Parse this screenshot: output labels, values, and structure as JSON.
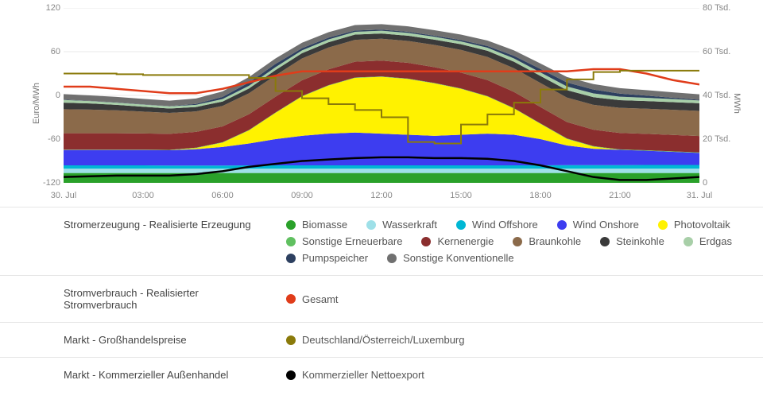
{
  "chart": {
    "type": "area-stacked-with-lines",
    "background_color": "#ffffff",
    "grid_color": "#e8e8e8",
    "axis_text_color": "#888888",
    "x": {
      "ticks": [
        "30. Jul",
        "03:00",
        "06:00",
        "09:00",
        "12:00",
        "15:00",
        "18:00",
        "21:00",
        "31. Jul"
      ],
      "positions": [
        0,
        0.125,
        0.25,
        0.375,
        0.5,
        0.625,
        0.75,
        0.875,
        1.0
      ]
    },
    "y_left": {
      "label": "Euro/MWh",
      "min": -120,
      "max": 120,
      "tick_step": 60,
      "ticks": [
        -120,
        -60,
        0,
        60,
        120
      ]
    },
    "y_right": {
      "label": "MWh",
      "min": 0,
      "max": 80000,
      "tick_step": 20000,
      "ticks_labels": [
        "0",
        "20 Tsd.",
        "40 Tsd.",
        "60 Tsd.",
        "80 Tsd."
      ]
    },
    "stacked_series": [
      {
        "name": "Biomasse",
        "color": "#2aa12a",
        "values": [
          4.5,
          4.5,
          4.5,
          4.5,
          4.5,
          4.5,
          4.5,
          4.5,
          4.5,
          4.5,
          4.5,
          4.5,
          4.5,
          4.5,
          4.5,
          4.5,
          4.5,
          4.5,
          4.5,
          4.5,
          4.5,
          4.5,
          4.5,
          4.5,
          4.5
        ]
      },
      {
        "name": "Wasserkraft",
        "color": "#9ee0e8",
        "values": [
          2.0,
          2.0,
          2.0,
          2.0,
          2.0,
          2.0,
          2.0,
          2.0,
          2.0,
          2.0,
          2.0,
          2.0,
          2.0,
          2.0,
          2.0,
          2.0,
          2.0,
          2.0,
          2.0,
          2.0,
          2.0,
          2.0,
          2.0,
          2.0,
          2.0
        ]
      },
      {
        "name": "Wind Offshore",
        "color": "#00b7d4",
        "values": [
          1.5,
          1.5,
          1.5,
          1.5,
          1.4,
          1.4,
          1.4,
          1.5,
          1.5,
          1.5,
          1.5,
          1.5,
          1.5,
          1.5,
          1.5,
          1.5,
          1.5,
          1.5,
          1.5,
          1.6,
          1.6,
          1.6,
          1.7,
          1.7,
          1.7
        ]
      },
      {
        "name": "Wind Onshore",
        "color": "#3d3df0",
        "values": [
          7.0,
          7.0,
          7.0,
          7.0,
          7.0,
          7.5,
          8.5,
          10.0,
          12.0,
          13.5,
          14.5,
          15.0,
          14.5,
          14.0,
          13.5,
          14.0,
          14.5,
          14.0,
          12.0,
          9.0,
          7.5,
          7.0,
          6.5,
          6.0,
          5.5
        ]
      },
      {
        "name": "Photovoltaik",
        "color": "#fff200",
        "values": [
          0,
          0,
          0,
          0,
          0,
          0.5,
          2.0,
          6.0,
          12.0,
          18.0,
          22.0,
          25.0,
          26.0,
          25.5,
          24.0,
          21.0,
          17.0,
          12.0,
          7.0,
          3.0,
          1.0,
          0,
          0,
          0,
          0
        ]
      },
      {
        "name": "Sonstige Erneuerbare",
        "color": "#60c060",
        "values": [
          0.2,
          0.2,
          0.2,
          0.2,
          0.2,
          0.2,
          0.2,
          0.2,
          0.2,
          0.2,
          0.2,
          0.2,
          0.2,
          0.2,
          0.2,
          0.2,
          0.2,
          0.2,
          0.2,
          0.2,
          0.2,
          0.2,
          0.2,
          0.2,
          0.2
        ]
      },
      {
        "name": "Kernenergie",
        "color": "#8b2e2e",
        "values": [
          7.5,
          7.5,
          7.5,
          7.4,
          7.3,
          7.2,
          7.2,
          7.2,
          7.2,
          7.2,
          7.2,
          7.2,
          7.2,
          7.2,
          7.2,
          7.2,
          7.3,
          7.4,
          7.5,
          7.5,
          7.5,
          7.5,
          7.5,
          7.5,
          7.5
        ]
      },
      {
        "name": "Braunkohle",
        "color": "#8b6a4a",
        "values": [
          11.0,
          10.8,
          10.5,
          10.0,
          9.6,
          9.4,
          9.4,
          9.6,
          9.8,
          10.0,
          10.0,
          10.0,
          10.0,
          10.0,
          10.2,
          10.4,
          10.6,
          10.8,
          11.0,
          11.2,
          11.4,
          11.5,
          11.5,
          11.5,
          11.5
        ]
      },
      {
        "name": "Steinkohle",
        "color": "#3a3a3a",
        "values": [
          3.0,
          2.8,
          2.5,
          2.2,
          2.0,
          2.0,
          2.0,
          2.2,
          2.4,
          2.4,
          2.4,
          2.4,
          2.4,
          2.4,
          2.4,
          2.6,
          2.8,
          3.0,
          3.2,
          3.4,
          3.5,
          3.5,
          3.5,
          3.5,
          3.5
        ]
      },
      {
        "name": "Erdgas",
        "color": "#a8cfa8",
        "values": [
          1.2,
          1.1,
          1.0,
          1.0,
          1.0,
          1.0,
          1.1,
          1.2,
          1.3,
          1.3,
          1.3,
          1.3,
          1.3,
          1.3,
          1.3,
          1.3,
          1.4,
          1.5,
          1.6,
          1.7,
          1.7,
          1.6,
          1.5,
          1.4,
          1.3
        ]
      },
      {
        "name": "Pumpspeicher",
        "color": "#2d4060",
        "values": [
          0.2,
          0.1,
          0.1,
          0.1,
          0.1,
          0.4,
          1.0,
          1.5,
          1.5,
          1.0,
          0.8,
          0.6,
          0.5,
          0.5,
          0.5,
          0.6,
          0.8,
          1.2,
          1.6,
          1.8,
          1.8,
          1.4,
          1.0,
          0.6,
          0.3
        ]
      },
      {
        "name": "Sonstige Konventionelle",
        "color": "#707070",
        "values": [
          2.5,
          2.5,
          2.5,
          2.5,
          2.5,
          2.5,
          2.5,
          2.5,
          2.5,
          2.5,
          2.5,
          2.5,
          2.5,
          2.5,
          2.5,
          2.5,
          2.5,
          2.5,
          2.5,
          2.5,
          2.5,
          2.5,
          2.5,
          2.5,
          2.5
        ]
      }
    ],
    "line_series": [
      {
        "name": "Gesamt",
        "color": "#e03c1a",
        "width": 2.5,
        "axis": "right",
        "values": [
          44,
          44,
          43,
          42,
          41,
          41,
          43,
          46,
          49,
          51,
          51,
          51,
          51,
          51,
          51,
          51,
          51,
          51,
          51,
          51,
          52,
          52,
          50,
          47,
          45
        ]
      },
      {
        "name": "Deutschland/Österreich/Luxemburg",
        "color": "#8a7a0a",
        "width": 2,
        "axis": "left",
        "step": true,
        "values": [
          30,
          30,
          29,
          28,
          28,
          28,
          28,
          24,
          6,
          -4,
          -12,
          -20,
          -30,
          -64,
          -66,
          -40,
          -26,
          -10,
          8,
          22,
          32,
          34,
          34,
          34,
          34
        ]
      },
      {
        "name": "Kommerzieller Nettoexport",
        "color": "#000000",
        "width": 2.5,
        "axis": "left",
        "values": [
          -112,
          -111,
          -110,
          -110,
          -110,
          -108,
          -104,
          -98,
          -94,
          -90,
          -88,
          -86,
          -85,
          -85,
          -86,
          -86,
          -87,
          -90,
          -96,
          -104,
          -112,
          -116,
          -116,
          -114,
          -112
        ]
      }
    ]
  },
  "legend_groups": [
    {
      "title": "Stromerzeugung - Realisierte Erzeugung",
      "items": [
        {
          "label": "Biomasse",
          "color": "#2aa12a"
        },
        {
          "label": "Wasserkraft",
          "color": "#9ee0e8"
        },
        {
          "label": "Wind Offshore",
          "color": "#00b7d4"
        },
        {
          "label": "Wind Onshore",
          "color": "#3d3df0"
        },
        {
          "label": "Photovoltaik",
          "color": "#fff200"
        },
        {
          "label": "Sonstige Erneuerbare",
          "color": "#60c060"
        },
        {
          "label": "Kernenergie",
          "color": "#8b2e2e"
        },
        {
          "label": "Braunkohle",
          "color": "#8b6a4a"
        },
        {
          "label": "Steinkohle",
          "color": "#3a3a3a"
        },
        {
          "label": "Erdgas",
          "color": "#a8cfa8"
        },
        {
          "label": "Pumpspeicher",
          "color": "#2d4060"
        },
        {
          "label": "Sonstige Konventionelle",
          "color": "#707070"
        }
      ]
    },
    {
      "title": "Stromverbrauch - Realisierter Stromverbrauch",
      "items": [
        {
          "label": "Gesamt",
          "color": "#e03c1a"
        }
      ]
    },
    {
      "title": "Markt - Großhandelspreise",
      "items": [
        {
          "label": "Deutschland/Österreich/Luxemburg",
          "color": "#8a7a0a"
        }
      ]
    },
    {
      "title": "Markt - Kommerzieller Außenhandel",
      "items": [
        {
          "label": "Kommerzieller Nettoexport",
          "color": "#000000"
        }
      ]
    }
  ]
}
